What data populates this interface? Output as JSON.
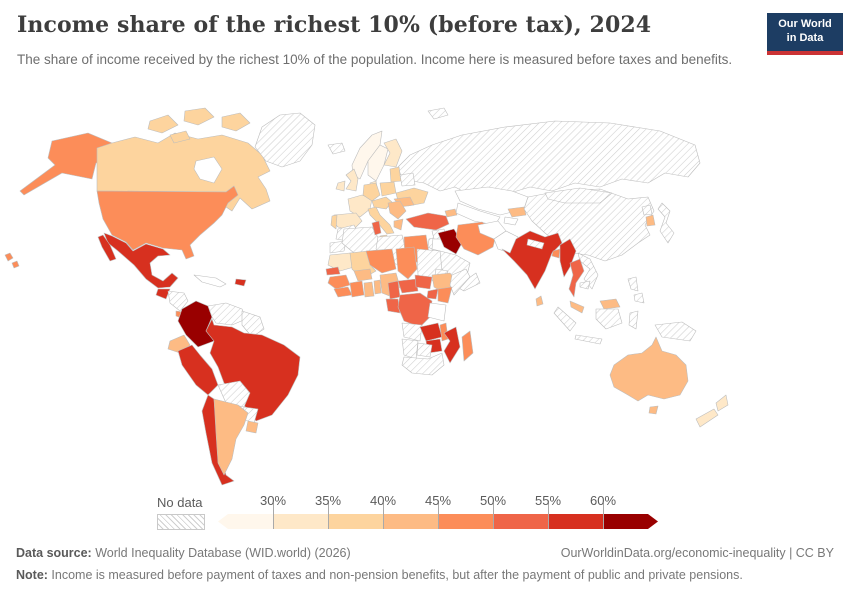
{
  "header": {
    "title": "Income share of the richest 10% (before tax), 2024",
    "subtitle": "The share of income received by the richest 10% of the population. Income here is measured before taxes and benefits.",
    "logo_line1": "Our World",
    "logo_line2": "in Data",
    "logo_bg_color": "#1d3d63",
    "logo_accent_color": "#cb3335"
  },
  "legend": {
    "no_data_label": "No data",
    "tick_labels": [
      "30%",
      "35%",
      "40%",
      "45%",
      "50%",
      "55%",
      "60%"
    ],
    "bin_colors": [
      "#FFF7EC",
      "#FEE8C8",
      "#FDD49E",
      "#FDBB84",
      "#FC8D59",
      "#EF6548",
      "#D7301F",
      "#990000"
    ]
  },
  "chart_data": {
    "type": "choropleth",
    "title": "Income share of the richest 10% (before tax), 2024",
    "unit": "%",
    "bins": [
      "<30%",
      "30-35%",
      "35-40%",
      "40-45%",
      "45-50%",
      "50-55%",
      "55-60%",
      ">60%"
    ],
    "bin_colors": [
      "#FFF7EC",
      "#FEE8C8",
      "#FDD49E",
      "#FDBB84",
      "#FC8D59",
      "#EF6548",
      "#D7301F",
      "#990000"
    ],
    "no_data_style": "hatched",
    "regions": {
      "usa": {
        "label": "United States",
        "value": "45-50%",
        "color": "#FC8D59"
      },
      "alaska": {
        "label": "United States",
        "value": "45-50%",
        "color": "#FC8D59"
      },
      "hawaii": {
        "label": "United States",
        "value": "45-50%",
        "color": "#FC8D59"
      },
      "canada": {
        "label": "Canada",
        "value": "35-40%",
        "color": "#FDD49E"
      },
      "greenland": {
        "label": "Greenland",
        "value": "No data",
        "color": "hatch"
      },
      "mexico": {
        "label": "Mexico",
        "value": "55-60%",
        "color": "#D7301F"
      },
      "guatemala": {
        "label": "Guatemala",
        "value": "55-60%",
        "color": "#D7301F"
      },
      "honduras-nicaragua": {
        "label": "Honduras & Nicaragua",
        "value": "No data",
        "color": "hatch"
      },
      "costa-rica-panama": {
        "label": "Costa Rica & Panama",
        "value": "45-50%",
        "color": "#FC8D59"
      },
      "cuba": {
        "label": "Cuba",
        "value": "No data",
        "color": "#FFFFFF"
      },
      "hispaniola": {
        "label": "Dominican Republic",
        "value": "55-60%",
        "color": "#D7301F"
      },
      "colombia": {
        "label": "Colombia",
        "value": ">60%",
        "color": "#990000"
      },
      "venezuela": {
        "label": "Venezuela",
        "value": "No data",
        "color": "hatch"
      },
      "guyanas": {
        "label": "Guyana & Suriname",
        "value": "No data",
        "color": "hatch"
      },
      "ecuador": {
        "label": "Ecuador",
        "value": "40-45%",
        "color": "#FDBB84"
      },
      "peru": {
        "label": "Peru",
        "value": "55-60%",
        "color": "#D7301F"
      },
      "brazil": {
        "label": "Brazil",
        "value": "55-60%",
        "color": "#D7301F"
      },
      "bolivia": {
        "label": "Bolivia",
        "value": "No data",
        "color": "hatch"
      },
      "paraguay": {
        "label": "Paraguay",
        "value": "No data",
        "color": "hatch"
      },
      "chile": {
        "label": "Chile",
        "value": "55-60%",
        "color": "#D7301F"
      },
      "argentina": {
        "label": "Argentina",
        "value": "40-45%",
        "color": "#FDBB84"
      },
      "uruguay": {
        "label": "Uruguay",
        "value": "40-45%",
        "color": "#FDBB84"
      },
      "iceland": {
        "label": "Iceland",
        "value": "No data",
        "color": "hatch"
      },
      "svalbard": {
        "label": "Svalbard",
        "value": "No data",
        "color": "hatch"
      },
      "norway": {
        "label": "Norway",
        "value": "<30%",
        "color": "#FFF7EC"
      },
      "sweden": {
        "label": "Sweden",
        "value": "<30%",
        "color": "#FFF7EC"
      },
      "finland": {
        "label": "Finland",
        "value": "30-35%",
        "color": "#FEE8C8"
      },
      "uk": {
        "label": "United Kingdom",
        "value": "30-35%",
        "color": "#FEE8C8"
      },
      "ireland": {
        "label": "Ireland",
        "value": "30-35%",
        "color": "#FEE8C8"
      },
      "denmark": {
        "label": "Denmark",
        "value": "30-35%",
        "color": "#FEE8C8"
      },
      "france": {
        "label": "France",
        "value": "30-35%",
        "color": "#FEE8C8"
      },
      "iberia": {
        "label": "Spain",
        "value": "30-35%",
        "color": "#FEE8C8"
      },
      "portugal": {
        "label": "Portugal",
        "value": "35-40%",
        "color": "#FDD49E"
      },
      "germany": {
        "label": "Germany",
        "value": "35-40%",
        "color": "#FDD49E"
      },
      "poland": {
        "label": "Poland",
        "value": "35-40%",
        "color": "#FDD49E"
      },
      "baltics": {
        "label": "Baltic states",
        "value": "35-40%",
        "color": "#FDD49E"
      },
      "belarus": {
        "label": "Belarus",
        "value": "No data",
        "color": "hatch"
      },
      "ukraine": {
        "label": "Ukraine",
        "value": "35-40%",
        "color": "#FDD49E"
      },
      "central-europe": {
        "label": "Austria & Czechia",
        "value": "35-40%",
        "color": "#FDD49E"
      },
      "italy": {
        "label": "Italy",
        "value": "35-40%",
        "color": "#FDD49E"
      },
      "balkans": {
        "label": "Balkans",
        "value": "40-45%",
        "color": "#FDBB84"
      },
      "romania": {
        "label": "Romania",
        "value": "40-45%",
        "color": "#FDBB84"
      },
      "greece": {
        "label": "Greece",
        "value": "40-45%",
        "color": "#FDBB84"
      },
      "russia": {
        "label": "Russia",
        "value": "No data",
        "color": "hatch"
      },
      "kazakhstan": {
        "label": "Kazakhstan",
        "value": "No data",
        "color": "#FFFFFF"
      },
      "uzbekistan-turkmenistan": {
        "label": "Uzbekistan & Turkmenistan",
        "value": "No data",
        "color": "#FFFFFF"
      },
      "kyrgyzstan": {
        "label": "Kyrgyzstan",
        "value": "40-45%",
        "color": "#FDBB84"
      },
      "tajikistan": {
        "label": "Tajikistan",
        "value": "No data",
        "color": "#FFFFFF"
      },
      "caucasus": {
        "label": "Azerbaijan",
        "value": "40-45%",
        "color": "#FDBB84"
      },
      "china": {
        "label": "China",
        "value": "No data",
        "color": "hatch"
      },
      "mongolia": {
        "label": "Mongolia",
        "value": "No data",
        "color": "hatch"
      },
      "japan": {
        "label": "Japan",
        "value": "No data",
        "color": "hatch"
      },
      "south-korea": {
        "label": "South Korea",
        "value": "40-45%",
        "color": "#FDBB84"
      },
      "north-korea": {
        "label": "North Korea",
        "value": "No data",
        "color": "hatch"
      },
      "afghanistan": {
        "label": "Afghanistan",
        "value": "No data",
        "color": "#FFFFFF"
      },
      "pakistan": {
        "label": "Pakistan",
        "value": "No data",
        "color": "#FFFFFF"
      },
      "india": {
        "label": "India",
        "value": "55-60%",
        "color": "#D7301F"
      },
      "nepal": {
        "label": "Nepal",
        "value": "No data",
        "color": "hatch"
      },
      "sri-lanka": {
        "label": "Sri Lanka",
        "value": "40-45%",
        "color": "#FDBB84"
      },
      "bangladesh": {
        "label": "Bangladesh",
        "value": "45-50%",
        "color": "#FC8D59"
      },
      "myanmar": {
        "label": "Myanmar",
        "value": "55-60%",
        "color": "#D7301F"
      },
      "thailand": {
        "label": "Thailand",
        "value": "50-55%",
        "color": "#EF6548"
      },
      "laos-vietnam": {
        "label": "Laos & Vietnam",
        "value": "No data",
        "color": "hatch"
      },
      "cambodia": {
        "label": "Cambodia",
        "value": "No data",
        "color": "hatch"
      },
      "malaysia": {
        "label": "Malaysia",
        "value": "40-45%",
        "color": "#FDBB84"
      },
      "indonesia": {
        "label": "Indonesia",
        "value": "No data",
        "color": "hatch"
      },
      "new-guinea": {
        "label": "Papua New Guinea",
        "value": "No data",
        "color": "hatch"
      },
      "philippines": {
        "label": "Philippines",
        "value": "No data",
        "color": "hatch"
      },
      "turkey": {
        "label": "Turkey",
        "value": "50-55%",
        "color": "#EF6548"
      },
      "syria": {
        "label": "Syria",
        "value": "No data",
        "color": "hatch"
      },
      "levant": {
        "label": "Jordan & Israel",
        "value": "No data",
        "color": "hatch"
      },
      "iraq": {
        "label": "Iraq",
        "value": ">60%",
        "color": "#990000"
      },
      "iran": {
        "label": "Iran",
        "value": "45-50%",
        "color": "#FC8D59"
      },
      "saudi-arabia": {
        "label": "Saudi Arabia",
        "value": "No data",
        "color": "hatch"
      },
      "yemen-oman": {
        "label": "Yemen & Oman",
        "value": "No data",
        "color": "hatch"
      },
      "morocco": {
        "label": "Morocco",
        "value": "No data",
        "color": "hatch"
      },
      "western-sahara": {
        "label": "Western Sahara",
        "value": "No data",
        "color": "hatch"
      },
      "algeria": {
        "label": "Algeria",
        "value": "No data",
        "color": "hatch"
      },
      "tunisia": {
        "label": "Tunisia",
        "value": "50-55%",
        "color": "#EF6548"
      },
      "libya": {
        "label": "Libya",
        "value": "No data",
        "color": "hatch"
      },
      "egypt": {
        "label": "Egypt",
        "value": "45-50%",
        "color": "#FC8D59"
      },
      "mauritania": {
        "label": "Mauritania",
        "value": "30-35%",
        "color": "#FEE8C8"
      },
      "mali": {
        "label": "Mali",
        "value": "35-40%",
        "color": "#FDD49E"
      },
      "senegal": {
        "label": "Senegal",
        "value": "50-55%",
        "color": "#EF6548"
      },
      "guinea": {
        "label": "Guinea",
        "value": "45-50%",
        "color": "#FC8D59"
      },
      "sierra-leone-liberia": {
        "label": "Sierra Leone & Liberia",
        "value": "45-50%",
        "color": "#FC8D59"
      },
      "cote-divoire": {
        "label": "Cote d'Ivoire",
        "value": "45-50%",
        "color": "#FC8D59"
      },
      "ghana": {
        "label": "Ghana",
        "value": "40-45%",
        "color": "#FDBB84"
      },
      "burkina-faso": {
        "label": "Burkina Faso",
        "value": "40-45%",
        "color": "#FDBB84"
      },
      "togo-benin": {
        "label": "Togo & Benin",
        "value": "40-45%",
        "color": "#FDBB84"
      },
      "nigeria": {
        "label": "Nigeria",
        "value": "40-45%",
        "color": "#FDBB84"
      },
      "niger": {
        "label": "Niger",
        "value": "45-50%",
        "color": "#FC8D59"
      },
      "chad": {
        "label": "Chad",
        "value": "45-50%",
        "color": "#FC8D59"
      },
      "sudan": {
        "label": "Sudan",
        "value": "No data",
        "color": "hatch"
      },
      "eritrea": {
        "label": "Eritrea & Djibouti",
        "value": "No data",
        "color": "hatch"
      },
      "ethiopia": {
        "label": "Ethiopia",
        "value": "40-45%",
        "color": "#FDBB84"
      },
      "somalia": {
        "label": "Somalia",
        "value": "No data",
        "color": "hatch"
      },
      "south-sudan": {
        "label": "South Sudan",
        "value": "50-55%",
        "color": "#EF6548"
      },
      "central-african-republic": {
        "label": "Central African Republic",
        "value": "50-55%",
        "color": "#EF6548"
      },
      "cameroon": {
        "label": "Cameroon",
        "value": "50-55%",
        "color": "#EF6548"
      },
      "gabon-congo": {
        "label": "Congo & Gabon",
        "value": "50-55%",
        "color": "#EF6548"
      },
      "uganda": {
        "label": "Uganda",
        "value": "50-55%",
        "color": "#EF6548"
      },
      "kenya": {
        "label": "Kenya",
        "value": "45-50%",
        "color": "#FC8D59"
      },
      "drc": {
        "label": "Democratic Republic of Congo",
        "value": "50-55%",
        "color": "#EF6548"
      },
      "tanzania": {
        "label": "Tanzania",
        "value": "No data",
        "color": "#FFFFFF"
      },
      "angola": {
        "label": "Angola",
        "value": "No data",
        "color": "hatch"
      },
      "zambia": {
        "label": "Zambia",
        "value": "55-60%",
        "color": "#D7301F"
      },
      "malawi": {
        "label": "Malawi",
        "value": "45-50%",
        "color": "#FC8D59"
      },
      "mozambique": {
        "label": "Mozambique",
        "value": "55-60%",
        "color": "#D7301F"
      },
      "zimbabwe": {
        "label": "Zimbabwe",
        "value": "55-60%",
        "color": "#D7301F"
      },
      "madagascar": {
        "label": "Madagascar",
        "value": "45-50%",
        "color": "#FC8D59"
      },
      "namibia": {
        "label": "Namibia",
        "value": "No data",
        "color": "hatch"
      },
      "botswana": {
        "label": "Botswana",
        "value": "No data",
        "color": "hatch"
      },
      "south-africa": {
        "label": "South Africa",
        "value": "No data",
        "color": "hatch"
      },
      "australia": {
        "label": "Australia",
        "value": "40-45%",
        "color": "#FDBB84"
      },
      "new-zealand": {
        "label": "New Zealand",
        "value": "30-35%",
        "color": "#FEE8C8"
      }
    }
  },
  "footer": {
    "source_label": "Data source:",
    "source_text": " World Inequality Database (WID.world) (2026)",
    "attribution": "OurWorldinData.org/economic-inequality | CC BY",
    "note_label": "Note:",
    "note_text": " Income is measured before payment of taxes and non-pension benefits, but after the payment of public and private pensions."
  }
}
